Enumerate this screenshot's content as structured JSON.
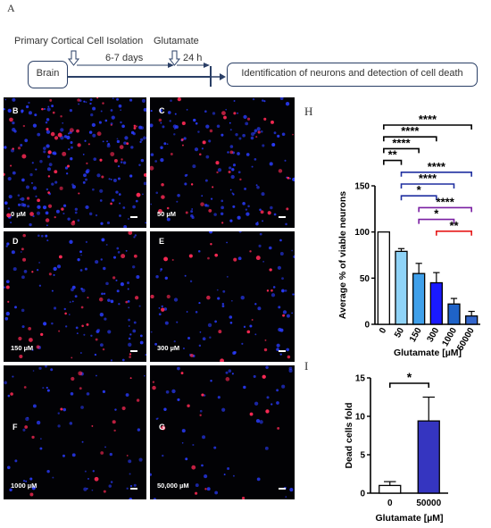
{
  "figure": {
    "panel_a_letter": "A",
    "scheme": {
      "label_isolation": "Primary Cortical Cell Isolation",
      "label_glutamate": "Glutamate",
      "box_brain": "Brain",
      "label_days": "6-7 days",
      "label_hours": "24 h",
      "box_result": "Identification of neurons and detection of cell death"
    },
    "micrographs": [
      {
        "letter": "B",
        "concentration": "0 µM"
      },
      {
        "letter": "C",
        "concentration": "50 µM"
      },
      {
        "letter": "D",
        "concentration": "150 µM"
      },
      {
        "letter": "E",
        "concentration": "300 µM"
      },
      {
        "letter": "F",
        "concentration": "1000 µM"
      },
      {
        "letter": "G",
        "concentration": "50,000 µM"
      }
    ],
    "panel_h_letter": "H",
    "panel_i_letter": "I"
  },
  "colors": {
    "nuclei": "#2a3cff",
    "cells": "#ff2a55",
    "bar_h": [
      "#ffffff",
      "#8fd3f7",
      "#3fa0ea",
      "#1a1aff",
      "#1f63c8",
      "#3366cc"
    ],
    "bar_i": [
      "#ffffff",
      "#3535c0"
    ],
    "sig_black": "#000000",
    "sig_navy": "#1f2fa0",
    "sig_purple": "#7a1fa2",
    "sig_red": "#e61919"
  },
  "chart_data": [
    {
      "type": "bar",
      "panel": "H",
      "categories": [
        "0",
        "50",
        "150",
        "300",
        "1000",
        "50000"
      ],
      "values": [
        100,
        79,
        55,
        45,
        22,
        9
      ],
      "errors": [
        0,
        3,
        11,
        11,
        6,
        5
      ],
      "ylabel": "Average % of viable neurons",
      "xlabel": "Glutamate [µM]",
      "ylim": [
        0,
        150
      ],
      "yticks": [
        "0",
        "50",
        "100",
        "150"
      ],
      "significance": [
        {
          "from": "0",
          "to": "50000",
          "label": "****",
          "color": "black"
        },
        {
          "from": "0",
          "to": "300",
          "label": "****",
          "color": "black"
        },
        {
          "from": "0",
          "to": "150",
          "label": "****",
          "color": "black"
        },
        {
          "from": "0",
          "to": "50",
          "label": "**",
          "color": "black"
        },
        {
          "from": "50",
          "to": "50000",
          "label": "****",
          "color": "navy"
        },
        {
          "from": "50",
          "to": "1000",
          "label": "****",
          "color": "navy"
        },
        {
          "from": "50",
          "to": "300",
          "label": "*",
          "color": "navy"
        },
        {
          "from": "150",
          "to": "50000",
          "label": "****",
          "color": "purple"
        },
        {
          "from": "150",
          "to": "1000",
          "label": "*",
          "color": "purple"
        },
        {
          "from": "300",
          "to": "50000",
          "label": "**",
          "color": "red"
        }
      ]
    },
    {
      "type": "bar",
      "panel": "I",
      "categories": [
        "0",
        "50000"
      ],
      "values": [
        1,
        9.4
      ],
      "errors": [
        0.5,
        3.1
      ],
      "ylabel": "Dead cells fold",
      "xlabel": "Glutamate [µM]",
      "ylim": [
        0,
        15
      ],
      "yticks": [
        "0",
        "5",
        "10",
        "15"
      ],
      "significance": [
        {
          "from": "0",
          "to": "50000",
          "label": "*",
          "color": "black"
        }
      ]
    }
  ]
}
